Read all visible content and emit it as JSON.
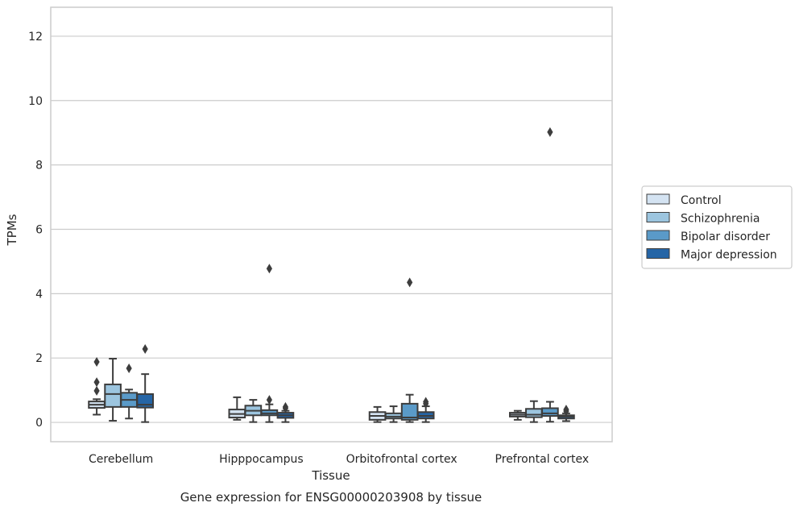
{
  "chart_data": {
    "type": "box",
    "title": "",
    "caption": "Gene expression for ENSG00000203908 by tissue",
    "xlabel": "Tissue",
    "ylabel": "TPMs",
    "ylim": [
      -0.6,
      12.9
    ],
    "yticks": [
      0,
      2,
      4,
      6,
      8,
      10,
      12
    ],
    "grid": "y",
    "legend_position": "right",
    "categories": [
      "Cerebellum",
      "Hipppocampus",
      "Orbitofrontal cortex",
      "Prefrontal cortex"
    ],
    "series": [
      {
        "name": "Control",
        "color": "#d4e3f2",
        "boxes": [
          {
            "whisker_low": 0.24,
            "q1": 0.45,
            "median": 0.55,
            "q3": 0.65,
            "whisker_high": 0.72,
            "outliers": [
              1.88,
              1.25,
              0.98
            ]
          },
          {
            "whisker_low": 0.08,
            "q1": 0.15,
            "median": 0.26,
            "q3": 0.4,
            "whisker_high": 0.78,
            "outliers": []
          },
          {
            "whisker_low": 0.01,
            "q1": 0.08,
            "median": 0.2,
            "q3": 0.32,
            "whisker_high": 0.48,
            "outliers": []
          },
          {
            "whisker_low": 0.08,
            "q1": 0.18,
            "median": 0.24,
            "q3": 0.3,
            "whisker_high": 0.36,
            "outliers": []
          }
        ]
      },
      {
        "name": "Schizophrenia",
        "color": "#9cc5df",
        "boxes": [
          {
            "whisker_low": 0.05,
            "q1": 0.48,
            "median": 0.88,
            "q3": 1.18,
            "whisker_high": 1.98,
            "outliers": []
          },
          {
            "whisker_low": 0.01,
            "q1": 0.22,
            "median": 0.36,
            "q3": 0.52,
            "whisker_high": 0.7,
            "outliers": []
          },
          {
            "whisker_low": 0.01,
            "q1": 0.12,
            "median": 0.18,
            "q3": 0.28,
            "whisker_high": 0.5,
            "outliers": []
          },
          {
            "whisker_low": 0.01,
            "q1": 0.16,
            "median": 0.24,
            "q3": 0.42,
            "whisker_high": 0.66,
            "outliers": []
          }
        ]
      },
      {
        "name": "Bipolar disorder",
        "color": "#5a9ac8",
        "boxes": [
          {
            "whisker_low": 0.12,
            "q1": 0.48,
            "median": 0.7,
            "q3": 0.92,
            "whisker_high": 1.02,
            "outliers": [
              1.68
            ]
          },
          {
            "whisker_low": 0.01,
            "q1": 0.22,
            "median": 0.28,
            "q3": 0.38,
            "whisker_high": 0.56,
            "outliers": [
              4.78,
              0.7
            ]
          },
          {
            "whisker_low": 0.01,
            "q1": 0.08,
            "median": 0.15,
            "q3": 0.58,
            "whisker_high": 0.86,
            "outliers": [
              4.35
            ]
          },
          {
            "whisker_low": 0.02,
            "q1": 0.2,
            "median": 0.28,
            "q3": 0.44,
            "whisker_high": 0.64,
            "outliers": [
              9.02
            ]
          }
        ]
      },
      {
        "name": "Major depression",
        "color": "#2565a6",
        "boxes": [
          {
            "whisker_low": 0.01,
            "q1": 0.46,
            "median": 0.55,
            "q3": 0.88,
            "whisker_high": 1.5,
            "outliers": [
              2.28
            ]
          },
          {
            "whisker_low": 0.01,
            "q1": 0.14,
            "median": 0.22,
            "q3": 0.3,
            "whisker_high": 0.36,
            "outliers": [
              0.48,
              0.44
            ]
          },
          {
            "whisker_low": 0.01,
            "q1": 0.12,
            "median": 0.2,
            "q3": 0.32,
            "whisker_high": 0.5,
            "outliers": [
              0.64,
              0.58
            ]
          },
          {
            "whisker_low": 0.04,
            "q1": 0.12,
            "median": 0.18,
            "q3": 0.22,
            "whisker_high": 0.28,
            "outliers": [
              0.4,
              0.35
            ]
          }
        ]
      }
    ]
  }
}
